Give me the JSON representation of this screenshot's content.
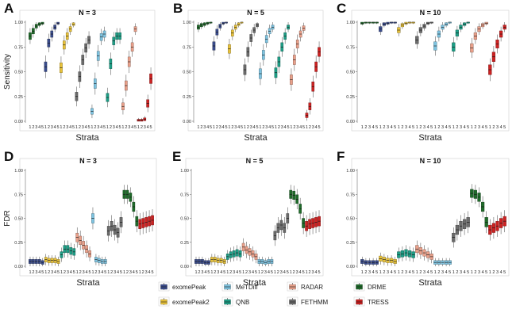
{
  "chart_data": [
    {
      "panel": "A",
      "title": "N = 3",
      "type": "box",
      "metric": "Sensitivity",
      "xlabel": "Strata",
      "ylabel": "Sensitivity",
      "ylim": [
        0,
        1
      ],
      "yticks": [
        "0.00",
        "0.25",
        "0.50",
        "0.75",
        "1.00"
      ],
      "series": [
        {
          "name": "DRME",
          "values": [
            0.86,
            0.91,
            0.96,
            0.98,
            0.99
          ]
        },
        {
          "name": "exomePeak",
          "values": [
            0.55,
            0.79,
            0.88,
            0.95,
            0.99
          ]
        },
        {
          "name": "exomePeak2",
          "values": [
            0.54,
            0.77,
            0.86,
            0.93,
            0.98
          ]
        },
        {
          "name": "FETHMM",
          "values": [
            0.25,
            0.45,
            0.62,
            0.74,
            0.82
          ]
        },
        {
          "name": "MeTDiff",
          "values": [
            0.1,
            0.38,
            0.66,
            0.85,
            0.88
          ]
        },
        {
          "name": "QNB",
          "values": [
            0.24,
            0.58,
            0.81,
            0.86,
            0.86
          ]
        },
        {
          "name": "RADAR",
          "values": [
            0.15,
            0.36,
            0.6,
            0.75,
            0.93
          ]
        },
        {
          "name": "TRESS",
          "values": [
            0.01,
            0.01,
            0.02,
            0.18,
            0.43
          ]
        }
      ]
    },
    {
      "panel": "B",
      "title": "N = 5",
      "type": "box",
      "metric": "Sensitivity",
      "xlabel": "Strata",
      "ylabel": "",
      "ylim": [
        0,
        1
      ],
      "yticks": [
        "0.00",
        "0.25",
        "0.50",
        "0.75",
        "1.00"
      ],
      "series": [
        {
          "name": "DRME",
          "values": [
            0.95,
            0.97,
            0.98,
            0.99,
            1.0
          ]
        },
        {
          "name": "exomePeak",
          "values": [
            0.76,
            0.9,
            0.96,
            0.99,
            1.0
          ]
        },
        {
          "name": "exomePeak2",
          "values": [
            0.73,
            0.89,
            0.95,
            0.98,
            1.0
          ]
        },
        {
          "name": "FETHMM",
          "values": [
            0.52,
            0.7,
            0.84,
            0.92,
            0.97
          ]
        },
        {
          "name": "MeTDiff",
          "values": [
            0.48,
            0.67,
            0.83,
            0.91,
            0.95
          ]
        },
        {
          "name": "QNB",
          "values": [
            0.49,
            0.6,
            0.75,
            0.86,
            0.95
          ]
        },
        {
          "name": "RADAR",
          "values": [
            0.42,
            0.62,
            0.78,
            0.88,
            0.94
          ]
        },
        {
          "name": "TRESS",
          "values": [
            0.06,
            0.15,
            0.35,
            0.55,
            0.7
          ]
        }
      ]
    },
    {
      "panel": "C",
      "title": "N = 10",
      "type": "box",
      "metric": "Sensitivity",
      "xlabel": "Strata",
      "ylabel": "",
      "ylim": [
        0,
        1
      ],
      "yticks": [
        "0.00",
        "0.25",
        "0.50",
        "0.75",
        "1.00"
      ],
      "series": [
        {
          "name": "DRME",
          "values": [
            0.99,
            1.0,
            1.0,
            1.0,
            1.0
          ]
        },
        {
          "name": "exomePeak",
          "values": [
            0.93,
            0.98,
            0.99,
            1.0,
            1.0
          ]
        },
        {
          "name": "exomePeak2",
          "values": [
            0.92,
            0.97,
            0.99,
            1.0,
            1.0
          ]
        },
        {
          "name": "FETHMM",
          "values": [
            0.82,
            0.92,
            0.96,
            0.99,
            1.0
          ]
        },
        {
          "name": "MeTDiff",
          "values": [
            0.76,
            0.88,
            0.95,
            0.98,
            1.0
          ]
        },
        {
          "name": "QNB",
          "values": [
            0.75,
            0.89,
            0.95,
            0.98,
            1.0
          ]
        },
        {
          "name": "RADAR",
          "values": [
            0.74,
            0.86,
            0.93,
            0.97,
            0.99
          ]
        },
        {
          "name": "TRESS",
          "values": [
            0.52,
            0.65,
            0.78,
            0.88,
            0.95
          ]
        }
      ]
    },
    {
      "panel": "D",
      "title": "N = 3",
      "type": "box",
      "metric": "FDR",
      "xlabel": "Strata",
      "ylabel": "FDR",
      "ylim": [
        0,
        1
      ],
      "yticks": [
        "0.00",
        "0.25",
        "0.50",
        "0.75",
        "1.00"
      ],
      "series": [
        {
          "name": "exomePeak",
          "values": [
            0.05,
            0.05,
            0.05,
            0.05,
            0.04
          ]
        },
        {
          "name": "exomePeak2",
          "values": [
            0.07,
            0.06,
            0.06,
            0.06,
            0.05
          ]
        },
        {
          "name": "QNB",
          "values": [
            0.12,
            0.18,
            0.18,
            0.16,
            0.15
          ]
        },
        {
          "name": "RADAR",
          "values": [
            0.3,
            0.27,
            0.22,
            0.18,
            0.13
          ]
        },
        {
          "name": "MeTDiff",
          "values": [
            0.5,
            0.07,
            0.06,
            0.05,
            0.05
          ]
        },
        {
          "name": "FETHMM",
          "values": [
            0.37,
            0.42,
            0.38,
            0.35,
            0.46
          ]
        },
        {
          "name": "DRME",
          "values": [
            0.75,
            0.75,
            0.72,
            0.62,
            0.47
          ]
        },
        {
          "name": "TRESS",
          "values": [
            0.44,
            0.45,
            0.46,
            0.47,
            0.48
          ]
        }
      ]
    },
    {
      "panel": "E",
      "title": "N = 5",
      "type": "box",
      "metric": "FDR",
      "xlabel": "Strata",
      "ylabel": "",
      "ylim": [
        0,
        1
      ],
      "yticks": [
        "0.00",
        "0.25",
        "0.50",
        "0.75",
        "1.00"
      ],
      "series": [
        {
          "name": "exomePeak",
          "values": [
            0.05,
            0.05,
            0.05,
            0.04,
            0.04
          ]
        },
        {
          "name": "exomePeak2",
          "values": [
            0.07,
            0.07,
            0.06,
            0.06,
            0.05
          ]
        },
        {
          "name": "QNB",
          "values": [
            0.1,
            0.12,
            0.13,
            0.14,
            0.13
          ]
        },
        {
          "name": "RADAR",
          "values": [
            0.2,
            0.17,
            0.15,
            0.13,
            0.1
          ]
        },
        {
          "name": "MeTDiff",
          "values": [
            0.05,
            0.05,
            0.04,
            0.05,
            0.05
          ]
        },
        {
          "name": "FETHMM",
          "values": [
            0.32,
            0.4,
            0.43,
            0.4,
            0.5
          ]
        },
        {
          "name": "DRME",
          "values": [
            0.75,
            0.74,
            0.7,
            0.6,
            0.45
          ]
        },
        {
          "name": "TRESS",
          "values": [
            0.42,
            0.44,
            0.45,
            0.46,
            0.47
          ]
        }
      ]
    },
    {
      "panel": "F",
      "title": "N = 10",
      "type": "box",
      "metric": "FDR",
      "xlabel": "Strata",
      "ylabel": "",
      "ylim": [
        0,
        1
      ],
      "yticks": [
        "0.00",
        "0.25",
        "0.50",
        "0.75",
        "1.00"
      ],
      "series": [
        {
          "name": "exomePeak",
          "values": [
            0.05,
            0.04,
            0.04,
            0.04,
            0.04
          ]
        },
        {
          "name": "exomePeak2",
          "values": [
            0.08,
            0.07,
            0.06,
            0.06,
            0.05
          ]
        },
        {
          "name": "QNB",
          "values": [
            0.12,
            0.13,
            0.14,
            0.13,
            0.12
          ]
        },
        {
          "name": "RADAR",
          "values": [
            0.18,
            0.16,
            0.14,
            0.12,
            0.1
          ]
        },
        {
          "name": "MeTDiff",
          "values": [
            0.04,
            0.04,
            0.04,
            0.04,
            0.04
          ]
        },
        {
          "name": "FETHMM",
          "values": [
            0.3,
            0.38,
            0.42,
            0.44,
            0.46
          ]
        },
        {
          "name": "DRME",
          "values": [
            0.76,
            0.75,
            0.72,
            0.62,
            0.46
          ]
        },
        {
          "name": "TRESS",
          "values": [
            0.38,
            0.4,
            0.42,
            0.45,
            0.47
          ]
        }
      ]
    }
  ],
  "strata_labels": [
    "1",
    "2",
    "3",
    "4",
    "5"
  ],
  "legend": {
    "placement": "bottom",
    "items": [
      {
        "name": "exomePeak",
        "color": "#3a4c8c"
      },
      {
        "name": "MeTDiff",
        "color": "#7ec3e0"
      },
      {
        "name": "RADAR",
        "color": "#e9a08a"
      },
      {
        "name": "DRME",
        "color": "#1f6b2a"
      },
      {
        "name": "exomePeak2",
        "color": "#e8c23a"
      },
      {
        "name": "QNB",
        "color": "#1e9e86"
      },
      {
        "name": "FETHMM",
        "color": "#6b6b6b"
      },
      {
        "name": "TRESS",
        "color": "#cc2222"
      }
    ]
  }
}
